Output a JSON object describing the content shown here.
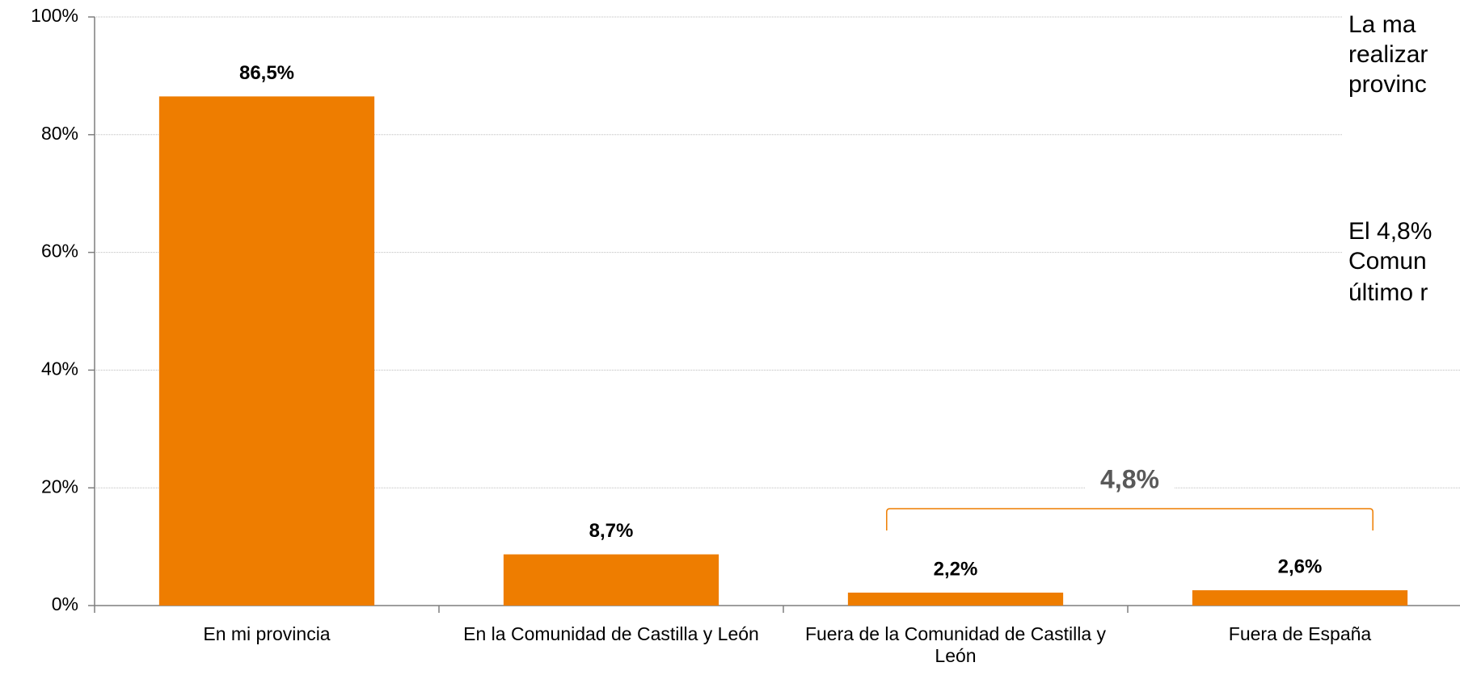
{
  "chart_data": {
    "type": "bar",
    "categories": [
      "En mi provincia",
      "En la Comunidad de Castilla y León",
      "Fuera de la Comunidad de Castilla y León",
      "Fuera de España"
    ],
    "values": [
      86.5,
      8.7,
      2.2,
      2.6
    ],
    "value_labels": [
      "86,5%",
      "8,7%",
      "2,2%",
      "2,6%"
    ],
    "color": "#ee7d00",
    "ylim": [
      0,
      100
    ],
    "yticks": [
      {
        "value": 0,
        "label": "0%"
      },
      {
        "value": 20,
        "label": "20%"
      },
      {
        "value": 40,
        "label": "40%"
      },
      {
        "value": 60,
        "label": "60%"
      },
      {
        "value": 80,
        "label": "80%"
      },
      {
        "value": 100,
        "label": "100%"
      }
    ],
    "grid": true,
    "bracket": {
      "value": 4.8,
      "label": "4,8%"
    },
    "annotations": [
      "La  ma",
      "realizar",
      "provinc",
      "El  4,8%",
      "Comun",
      "último r"
    ]
  }
}
